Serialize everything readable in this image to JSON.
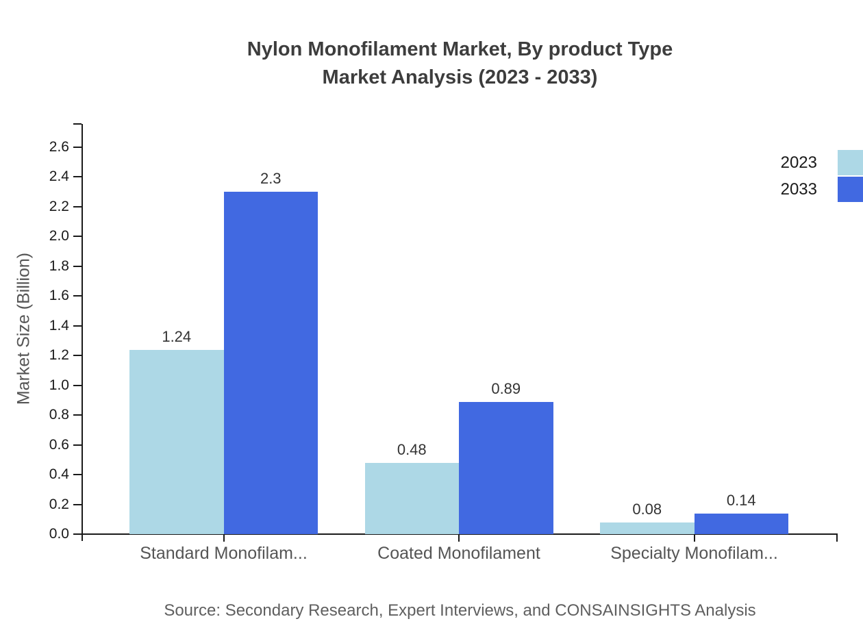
{
  "title": {
    "line1": "Nylon Monofilament Market, By product Type",
    "line2": "Market Analysis (2023 - 2033)"
  },
  "chart_data": {
    "type": "bar",
    "title": "Nylon Monofilament Market, By product Type Market Analysis (2023 - 2033)",
    "categories": [
      "Standard Monofilam...",
      "Coated Monofilament",
      "Specialty Monofilam..."
    ],
    "series": [
      {
        "name": "2023",
        "color": "#ADD8E6",
        "values": [
          1.24,
          0.48,
          0.08
        ],
        "value_labels": [
          "1.24",
          "0.48",
          "0.08"
        ]
      },
      {
        "name": "2033",
        "color": "#4169E1",
        "values": [
          2.3,
          0.89,
          0.14
        ],
        "value_labels": [
          "2.3",
          "0.89",
          "0.14"
        ]
      }
    ],
    "xlabel": "",
    "ylabel": "Market Size (Billion)",
    "ylim": [
      0,
      2.76
    ],
    "y_tick_step": 0.2,
    "y_tick_labels": [
      "0.0",
      "0.2",
      "0.4",
      "0.6",
      "0.8",
      "1.0",
      "1.2",
      "1.4",
      "1.6",
      "1.8",
      "2.0",
      "2.2",
      "2.4",
      "2.6"
    ],
    "grid": false,
    "legend_position": "top-right",
    "value_labels_shown": true
  },
  "footer": {
    "source": "Source: Secondary Research, Expert Interviews, and CONSAINSIGHTS Analysis"
  }
}
